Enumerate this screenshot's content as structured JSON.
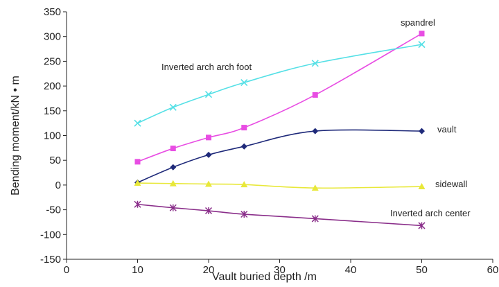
{
  "chart_data": {
    "type": "line",
    "title": "",
    "xlabel": "Vault buried depth /m",
    "ylabel": "Bending moment/kN • m",
    "xlim": [
      0,
      60
    ],
    "ylim": [
      -150,
      350
    ],
    "xticks": [
      0,
      10,
      20,
      30,
      40,
      50,
      60
    ],
    "yticks": [
      -150,
      -100,
      -50,
      0,
      50,
      100,
      150,
      200,
      250,
      300,
      350
    ],
    "grid": false,
    "legend": "none",
    "series": [
      {
        "name": "spandrel",
        "color": "#e84de3",
        "marker": "square",
        "x": [
          10,
          15,
          20,
          25,
          35,
          50
        ],
        "y": [
          47,
          74,
          96,
          116,
          182,
          306
        ]
      },
      {
        "name": "Inverted arch arch foot",
        "color": "#55e0e6",
        "marker": "x",
        "x": [
          10,
          15,
          20,
          25,
          35,
          50
        ],
        "y": [
          125,
          157,
          183,
          207,
          246,
          284
        ]
      },
      {
        "name": "vault",
        "color": "#1f2a7a",
        "marker": "diamond",
        "x": [
          10,
          15,
          20,
          25,
          35,
          50
        ],
        "y": [
          5,
          36,
          61,
          78,
          109,
          109
        ]
      },
      {
        "name": "sidewall",
        "color": "#e8e83a",
        "marker": "triangle",
        "x": [
          10,
          15,
          20,
          25,
          35,
          50
        ],
        "y": [
          4,
          3,
          2,
          1,
          -6,
          -3
        ]
      },
      {
        "name": "Inverted arch center",
        "color": "#8a2e8a",
        "marker": "asterisk",
        "x": [
          10,
          15,
          20,
          25,
          35,
          50
        ],
        "y": [
          -39,
          -46,
          -52,
          -59,
          -68,
          -82
        ]
      }
    ]
  }
}
